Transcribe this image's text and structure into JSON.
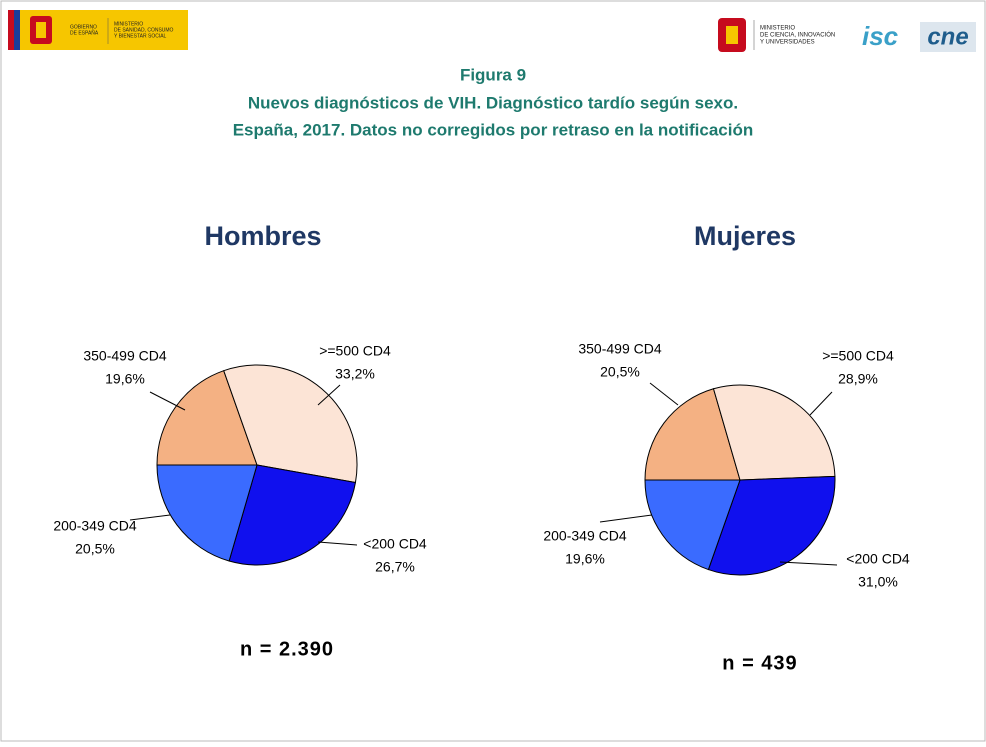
{
  "header": {
    "left_logo": [
      "GOBIERNO",
      "DE ESPAÑA"
    ],
    "left_ministry": [
      "MINISTERIO",
      "DE SANIDAD, CONSUMO",
      "Y BIENESTAR SOCIAL"
    ],
    "right_ministry": [
      "MINISTERIO",
      "DE CIENCIA, INNOVACIÓN",
      "Y UNIVERSIDADES"
    ],
    "right_logo_1": "isc",
    "right_logo_2": "cne"
  },
  "figure": {
    "label": "Figura 9",
    "title_lines": [
      "Nuevos diagnósticos de VIH. Diagnóstico tardío según sexo.",
      "España, 2017. Datos no corregidos por retraso en la notificación"
    ]
  },
  "chart_data": [
    {
      "type": "pie",
      "title": "Hombres",
      "categories": [
        "350-499 CD4",
        ">=500 CD4",
        "<200 CD4",
        "200-349 CD4"
      ],
      "values": [
        19.6,
        33.2,
        26.7,
        20.5
      ],
      "value_labels": [
        "19,6%",
        "33,2%",
        "26,7%",
        "20,5%"
      ],
      "colors": [
        "#f4b183",
        "#fce4d6",
        "#1010ee",
        "#3a6bff"
      ],
      "sample_size": "n = 2.390"
    },
    {
      "type": "pie",
      "title": "Mujeres",
      "categories": [
        "350-499 CD4",
        ">=500 CD4",
        "<200 CD4",
        "200-349 CD4"
      ],
      "values": [
        20.5,
        28.9,
        31.0,
        19.6
      ],
      "value_labels": [
        "20,5%",
        "28,9%",
        "31,0%",
        "19,6%"
      ],
      "colors": [
        "#f4b183",
        "#fce4d6",
        "#1010ee",
        "#3a6bff"
      ],
      "sample_size": "n = 439"
    }
  ]
}
